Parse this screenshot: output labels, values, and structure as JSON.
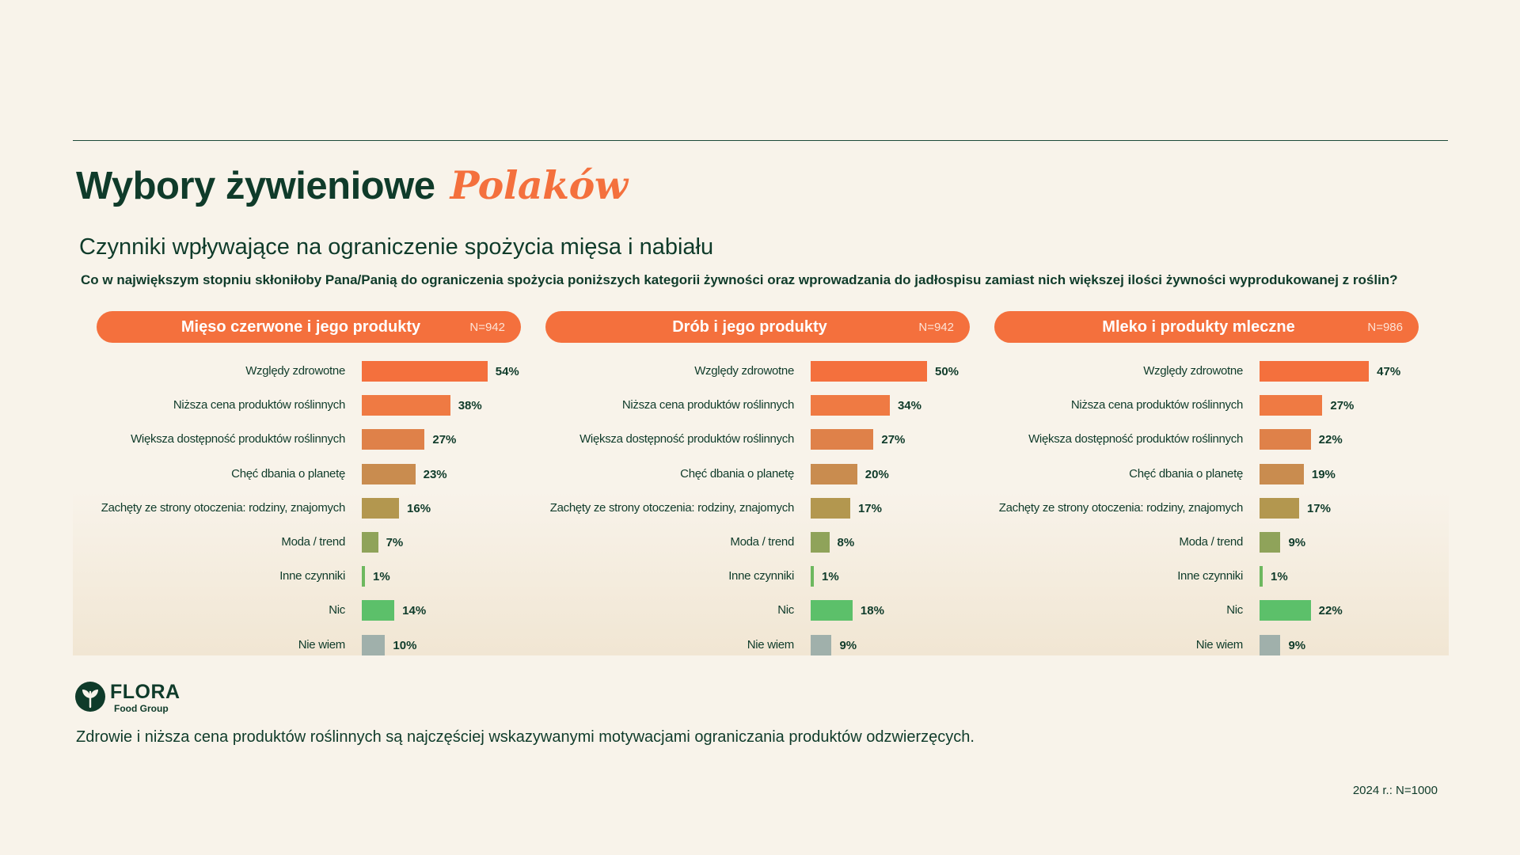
{
  "header": {
    "title": "Wybory żywieniowe",
    "title_accent": "Polaków",
    "subtitle": "Czynniki wpływające na ograniczenie spożycia mięsa i nabiału",
    "question": "Co w największym stopniu skłoniłoby Pana/Panią do ograniczenia spożycia poniższych kategorii żywności oraz wprowadzania do jadłospisu zamiast nich większej ilości żywności wyprodukowanej z roślin?"
  },
  "colors": {
    "accent": "#f4703d",
    "dark_green": "#0f3b2a",
    "background": "#f8f3ea",
    "bar_colors": [
      "#f4703d",
      "#ef7a43",
      "#df8149",
      "#c98c4f",
      "#b3974f",
      "#8fa35a",
      "#6db85f",
      "#5cc06a",
      "#a0b0ab"
    ]
  },
  "chart_data": [
    {
      "type": "bar",
      "title": "Mięso czerwone i jego produkty",
      "n": "N=942",
      "categories": [
        "Względy zdrowotne",
        "Niższa cena produktów roślinnych",
        "Większa dostępność produktów roślinnych",
        "Chęć dbania o planetę",
        "Zachęty ze strony otoczenia: rodziny, znajomych",
        "Moda / trend",
        "Inne czynniki",
        "Nic",
        "Nie wiem"
      ],
      "values": [
        54,
        38,
        27,
        23,
        16,
        7,
        1,
        14,
        10
      ],
      "value_labels": [
        "54%",
        "38%",
        "27%",
        "23%",
        "16%",
        "7%",
        "1%",
        "14%",
        "10%"
      ]
    },
    {
      "type": "bar",
      "title": "Drób i jego produkty",
      "n": "N=942",
      "categories": [
        "Względy zdrowotne",
        "Niższa cena produktów roślinnych",
        "Większa dostępność produktów roślinnych",
        "Chęć dbania o planetę",
        "Zachęty ze strony otoczenia: rodziny, znajomych",
        "Moda / trend",
        "Inne czynniki",
        "Nic",
        "Nie wiem"
      ],
      "values": [
        50,
        34,
        27,
        20,
        17,
        8,
        1,
        18,
        9
      ],
      "value_labels": [
        "50%",
        "34%",
        "27%",
        "20%",
        "17%",
        "8%",
        "1%",
        "18%",
        "9%"
      ]
    },
    {
      "type": "bar",
      "title": "Mleko i produkty mleczne",
      "n": "N=986",
      "categories": [
        "Względy zdrowotne",
        "Niższa cena produktów roślinnych",
        "Większa dostępność produktów roślinnych",
        "Chęć dbania o planetę",
        "Zachęty ze strony otoczenia: rodziny, znajomych",
        "Moda / trend",
        "Inne czynniki",
        "Nic",
        "Nie wiem"
      ],
      "values": [
        47,
        27,
        22,
        19,
        17,
        9,
        1,
        22,
        9
      ],
      "value_labels": [
        "47%",
        "27%",
        "22%",
        "19%",
        "17%",
        "9%",
        "1%",
        "22%",
        "9%"
      ]
    }
  ],
  "logo": {
    "word": "FLORA",
    "sub": "Food Group"
  },
  "footer": {
    "note": "Zdrowie i niższa cena produktów roślinnych są najczęściej wskazywanymi motywacjami ograniczania produktów odzwierzęcych.",
    "source": "2024 r.: N=1000"
  }
}
